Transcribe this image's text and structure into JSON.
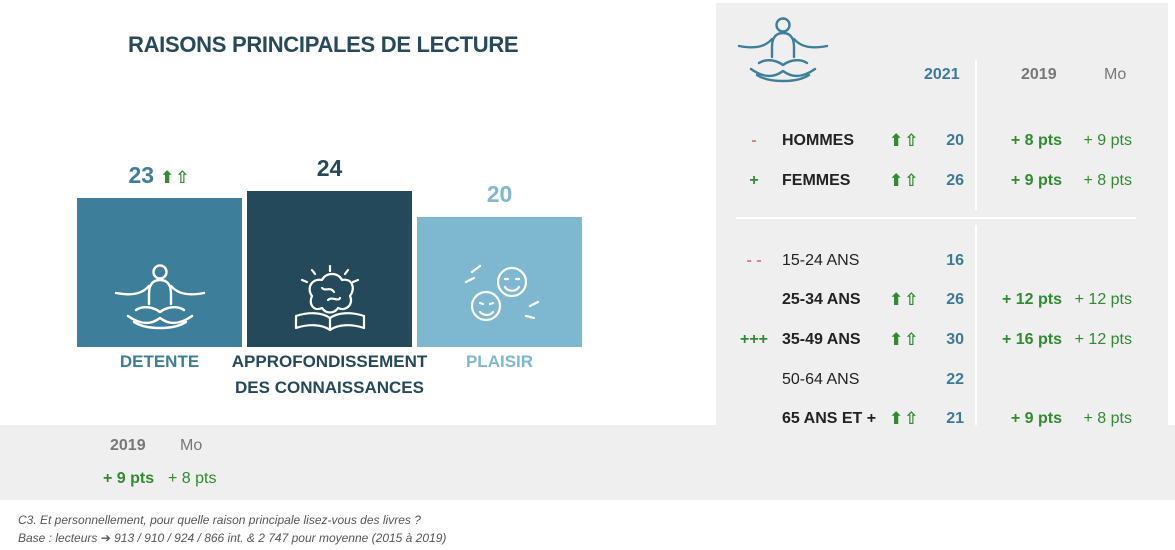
{
  "title": "RAISONS PRINCIPALES DE LECTURE",
  "colors": {
    "detente": "#3d7f9b",
    "approfondissement": "#23495a",
    "plaisir": "#7eb8d0",
    "green": "#2e8b2e",
    "red": "#e07b7b"
  },
  "chart_data": {
    "type": "bar",
    "categories": [
      "DETENTE",
      "APPROFONDISSEMENT DES CONNAISSANCES",
      "PLAISIR"
    ],
    "values": [
      23,
      24,
      20
    ],
    "icons": [
      "meditation-icon",
      "brain-book-icon",
      "faces-icon"
    ],
    "detente_trend": "⬆⇧",
    "category_lines": [
      [
        "DETENTE"
      ],
      [
        "APPROFONDISSEMENT",
        "DES CONNAISSANCES"
      ],
      [
        "PLAISIR"
      ]
    ]
  },
  "bottom": {
    "col_2019": "2019",
    "col_mo": "Mo",
    "val_2019": "+ 9 pts",
    "val_mo": "+ 8 pts"
  },
  "table": {
    "icon": "meditation-icon",
    "col_2021": "2021",
    "col_2019": "2019",
    "col_mo": "Mo",
    "gender_rows": [
      {
        "sig": "-",
        "sig_type": "neg",
        "label": "HOMMES",
        "bold": true,
        "trend": "⬆⇧",
        "v2021": "20",
        "v2019": "+ 8 pts",
        "vmo": "+ 9 pts"
      },
      {
        "sig": "+",
        "sig_type": "pos",
        "label": "FEMMES",
        "bold": true,
        "trend": "⬆⇧",
        "v2021": "26",
        "v2019": "+ 9 pts",
        "vmo": "+ 8 pts"
      }
    ],
    "age_rows": [
      {
        "sig": "- -",
        "sig_type": "neg",
        "label": "15-24 ANS",
        "bold": false,
        "trend": "",
        "v2021": "16",
        "v2019": "",
        "vmo": ""
      },
      {
        "sig": "",
        "sig_type": "pos",
        "label": "25-34 ANS",
        "bold": true,
        "trend": "⬆⇧",
        "v2021": "26",
        "v2019": "+ 12 pts",
        "vmo": "+ 12 pts"
      },
      {
        "sig": "+++",
        "sig_type": "pos",
        "label": "35-49 ANS",
        "bold": true,
        "trend": "⬆⇧",
        "v2021": "30",
        "v2019": "+ 16 pts",
        "vmo": "+ 12 pts"
      },
      {
        "sig": "",
        "sig_type": "pos",
        "label": "50-64 ANS",
        "bold": false,
        "trend": "",
        "v2021": "22",
        "v2019": "",
        "vmo": ""
      },
      {
        "sig": "",
        "sig_type": "pos",
        "label": "65 ANS ET +",
        "bold": true,
        "trend": "⬆⇧",
        "v2021": "21",
        "v2019": "+ 9 pts",
        "vmo": "+ 8 pts"
      }
    ]
  },
  "footnote": {
    "line1": "C3. Et personnellement, pour quelle raison principale lisez-vous des livres ?",
    "line2_prefix": "Base : lecteurs",
    "line2_arrow": "➔",
    "line2_rest": "913 / 910 / 924 / 866 int. & 2 747 pour moyenne (2015 à 2019)"
  }
}
